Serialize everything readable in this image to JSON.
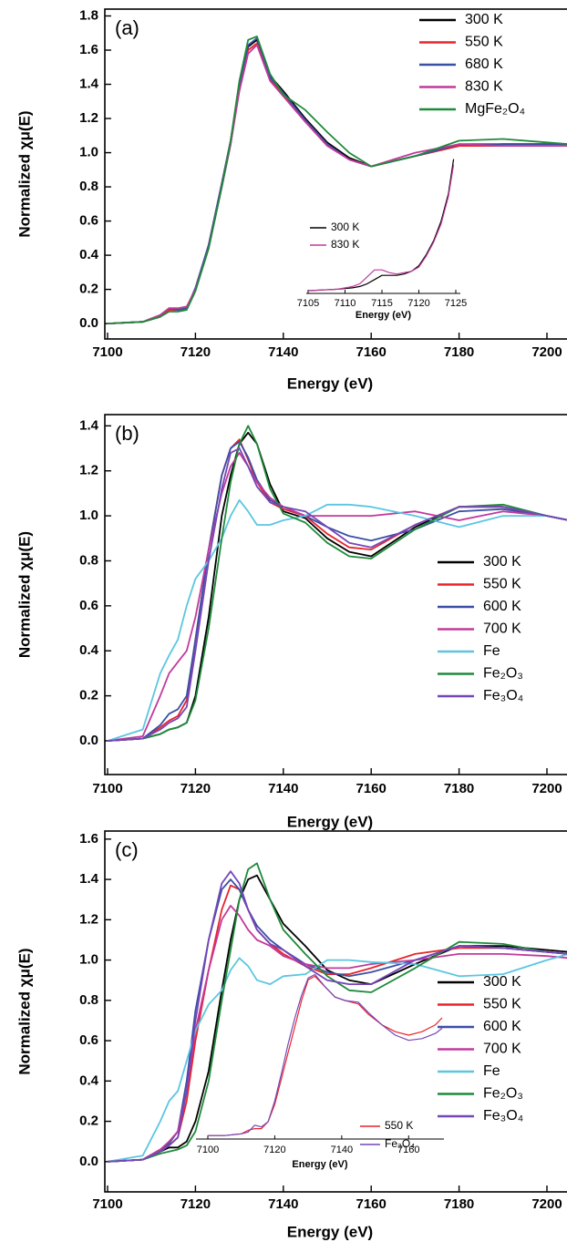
{
  "chart_data": [
    {
      "type": "line",
      "panel_label": "(a)",
      "xlabel": "Energy (eV)",
      "ylabel": "Normalized χμ(E)",
      "x": [
        7100,
        7108,
        7112,
        7114,
        7116,
        7118,
        7120,
        7123,
        7126,
        7128,
        7130,
        7132,
        7134,
        7137,
        7140,
        7145,
        7150,
        7155,
        7160,
        7170,
        7180,
        7190,
        7200,
        7205
      ],
      "xlim": [
        7100,
        7200
      ],
      "ylim": [
        -0.09,
        1.84
      ],
      "xticks": [
        7100,
        7120,
        7140,
        7160,
        7180,
        7200
      ],
      "yticks": [
        {
          "value": 0,
          "label": "0.0"
        },
        0.2,
        0.4,
        0.6,
        0.8,
        {
          "value": 1,
          "label": "1.0"
        },
        1.2,
        1.4,
        1.6,
        1.8
      ],
      "legend": "upper right",
      "series": [
        {
          "name": "300 K",
          "color": "#000000",
          "values": [
            0,
            0.01,
            0.04,
            0.08,
            0.08,
            0.09,
            0.2,
            0.45,
            0.8,
            1.05,
            1.38,
            1.62,
            1.66,
            1.45,
            1.36,
            1.2,
            1.06,
            0.97,
            0.92,
            0.98,
            1.04,
            1.05,
            1.05,
            1.05
          ]
        },
        {
          "name": "550 K",
          "color": "#e8242b",
          "values": [
            0,
            0.01,
            0.04,
            0.08,
            0.08,
            0.09,
            0.2,
            0.46,
            0.82,
            1.07,
            1.38,
            1.6,
            1.64,
            1.43,
            1.34,
            1.19,
            1.05,
            0.96,
            0.92,
            0.98,
            1.04,
            1.04,
            1.04,
            1.04
          ]
        },
        {
          "name": "680 K",
          "color": "#3a4fa6",
          "values": [
            0,
            0.01,
            0.05,
            0.09,
            0.08,
            0.09,
            0.21,
            0.46,
            0.82,
            1.07,
            1.4,
            1.63,
            1.67,
            1.44,
            1.35,
            1.19,
            1.05,
            0.96,
            0.92,
            0.98,
            1.05,
            1.05,
            1.05,
            1.05
          ]
        },
        {
          "name": "830 K",
          "color": "#c13a9c",
          "values": [
            0,
            0.01,
            0.05,
            0.09,
            0.09,
            0.1,
            0.2,
            0.44,
            0.8,
            1.05,
            1.36,
            1.58,
            1.63,
            1.42,
            1.33,
            1.18,
            1.04,
            0.96,
            0.92,
            1.0,
            1.05,
            1.04,
            1.04,
            1.04
          ]
        },
        {
          "name": "MgFe₂O₄",
          "color": "#1e8a3a",
          "values": [
            0,
            0.01,
            0.04,
            0.07,
            0.07,
            0.08,
            0.19,
            0.44,
            0.8,
            1.07,
            1.42,
            1.66,
            1.68,
            1.46,
            1.34,
            1.25,
            1.12,
            1.0,
            0.92,
            0.98,
            1.07,
            1.08,
            1.06,
            1.05
          ]
        }
      ]
    },
    {
      "type": "line",
      "xlabel": "Energy (eV)",
      "x": [
        7105,
        7107,
        7109,
        7111,
        7112,
        7113,
        7114,
        7115,
        7116,
        7117,
        7118,
        7119,
        7120,
        7121,
        7122,
        7123,
        7124,
        7124.7
      ],
      "xlim": [
        7105,
        7125
      ],
      "ylim": [
        0,
        1
      ],
      "xticks": [
        7105,
        7110,
        7115,
        7120,
        7125
      ],
      "series": [
        {
          "name": "300 K",
          "color": "#000000",
          "values": [
            0.02,
            0.025,
            0.03,
            0.04,
            0.05,
            0.07,
            0.1,
            0.13,
            0.13,
            0.13,
            0.14,
            0.16,
            0.2,
            0.28,
            0.38,
            0.52,
            0.72,
            0.97
          ]
        },
        {
          "name": "830 K",
          "color": "#c13a9c",
          "values": [
            0.02,
            0.025,
            0.03,
            0.05,
            0.07,
            0.12,
            0.17,
            0.17,
            0.15,
            0.14,
            0.15,
            0.16,
            0.19,
            0.27,
            0.37,
            0.5,
            0.7,
            0.93
          ]
        }
      ]
    },
    {
      "type": "line",
      "panel_label": "(b)",
      "xlabel": "Energy (eV)",
      "ylabel": "Normalized χμ(E)",
      "x": [
        7100,
        7108,
        7112,
        7114,
        7116,
        7118,
        7120,
        7123,
        7126,
        7128,
        7130,
        7132,
        7134,
        7137,
        7140,
        7145,
        7150,
        7155,
        7160,
        7170,
        7180,
        7190,
        7200,
        7205
      ],
      "xlim": [
        7100,
        7200
      ],
      "ylim": [
        -0.15,
        1.45
      ],
      "xticks": [
        7100,
        7120,
        7140,
        7160,
        7180,
        7200
      ],
      "yticks": [
        {
          "value": 0,
          "label": "0.0"
        },
        0.2,
        0.4,
        0.6,
        0.8,
        {
          "value": 1,
          "label": "1.0"
        },
        1.2,
        1.4
      ],
      "legend": "right",
      "series": [
        {
          "name": "300 K",
          "color": "#000000",
          "values": [
            0,
            0.01,
            0.03,
            0.05,
            0.06,
            0.08,
            0.2,
            0.55,
            1.0,
            1.18,
            1.32,
            1.37,
            1.32,
            1.14,
            1.02,
            0.99,
            0.9,
            0.84,
            0.82,
            0.95,
            1.04,
            1.04,
            1.0,
            0.98
          ]
        },
        {
          "name": "550 K",
          "color": "#e8242b",
          "values": [
            0,
            0.01,
            0.06,
            0.09,
            0.11,
            0.18,
            0.45,
            0.85,
            1.18,
            1.3,
            1.34,
            1.25,
            1.15,
            1.06,
            1.03,
            1.0,
            0.92,
            0.86,
            0.85,
            0.96,
            1.04,
            1.04,
            1.0,
            0.98
          ]
        },
        {
          "name": "600 K",
          "color": "#3a4fa6",
          "values": [
            0,
            0.01,
            0.07,
            0.12,
            0.14,
            0.2,
            0.45,
            0.85,
            1.18,
            1.3,
            1.33,
            1.26,
            1.16,
            1.07,
            1.04,
            1.0,
            0.95,
            0.91,
            0.89,
            0.94,
            1.02,
            1.03,
            1.0,
            0.98
          ]
        },
        {
          "name": "700 K",
          "color": "#c13a9c",
          "values": [
            0,
            0.02,
            0.2,
            0.3,
            0.35,
            0.4,
            0.55,
            0.85,
            1.1,
            1.22,
            1.28,
            1.22,
            1.15,
            1.08,
            1.04,
            1.0,
            1.0,
            1.0,
            1.0,
            1.02,
            0.98,
            1.02,
            1.0,
            0.98
          ]
        },
        {
          "name": "Fe",
          "color": "#5bc6e0",
          "values": [
            0,
            0.05,
            0.3,
            0.38,
            0.45,
            0.6,
            0.72,
            0.8,
            0.9,
            1.0,
            1.07,
            1.02,
            0.96,
            0.96,
            0.98,
            1.0,
            1.05,
            1.05,
            1.04,
            1.0,
            0.95,
            1.0,
            1.0,
            0.98
          ]
        },
        {
          "name": "Fe₂O₃",
          "color": "#1e8a3a",
          "values": [
            0,
            0.01,
            0.03,
            0.05,
            0.06,
            0.08,
            0.18,
            0.5,
            0.9,
            1.15,
            1.32,
            1.4,
            1.32,
            1.12,
            1.01,
            0.97,
            0.88,
            0.82,
            0.81,
            0.94,
            1.04,
            1.05,
            1.0,
            0.98
          ]
        },
        {
          "name": "Fe₃O₄",
          "color": "#7546b8",
          "values": [
            0,
            0.01,
            0.05,
            0.08,
            0.1,
            0.15,
            0.4,
            0.8,
            1.12,
            1.28,
            1.3,
            1.22,
            1.13,
            1.06,
            1.04,
            1.02,
            0.95,
            0.88,
            0.86,
            0.96,
            1.04,
            1.04,
            1.0,
            0.98
          ]
        }
      ]
    },
    {
      "type": "line",
      "panel_label": "(c)",
      "xlabel": "Energy (eV)",
      "ylabel": "Normalized χμ(E)",
      "x": [
        7100,
        7108,
        7112,
        7114,
        7116,
        7118,
        7120,
        7123,
        7126,
        7128,
        7130,
        7132,
        7134,
        7137,
        7140,
        7145,
        7150,
        7155,
        7160,
        7170,
        7180,
        7190,
        7200,
        7205
      ],
      "xlim": [
        7100,
        7200
      ],
      "ylim": [
        -0.15,
        1.64
      ],
      "xticks": [
        7100,
        7120,
        7140,
        7160,
        7180,
        7200
      ],
      "yticks": [
        {
          "value": 0,
          "label": "0.0"
        },
        0.2,
        0.4,
        0.6,
        0.8,
        {
          "value": 1,
          "label": "1.0"
        },
        1.2,
        1.4,
        1.6
      ],
      "legend": "lower right",
      "series": [
        {
          "name": "300 K",
          "color": "#000000",
          "values": [
            0,
            0.01,
            0.05,
            0.07,
            0.07,
            0.1,
            0.2,
            0.45,
            0.85,
            1.1,
            1.3,
            1.4,
            1.42,
            1.3,
            1.18,
            1.07,
            0.95,
            0.9,
            0.88,
            0.98,
            1.07,
            1.07,
            1.05,
            1.04
          ]
        },
        {
          "name": "550 K",
          "color": "#e8242b",
          "values": [
            0,
            0.01,
            0.06,
            0.08,
            0.12,
            0.3,
            0.6,
            0.95,
            1.25,
            1.37,
            1.35,
            1.25,
            1.15,
            1.08,
            1.03,
            0.97,
            0.93,
            0.93,
            0.96,
            1.03,
            1.06,
            1.06,
            1.04,
            1.03
          ]
        },
        {
          "name": "600 K",
          "color": "#3a4fa6",
          "values": [
            0,
            0.01,
            0.06,
            0.09,
            0.15,
            0.4,
            0.75,
            1.1,
            1.35,
            1.4,
            1.35,
            1.25,
            1.17,
            1.1,
            1.05,
            0.98,
            0.94,
            0.92,
            0.94,
            1.0,
            1.07,
            1.06,
            1.04,
            1.03
          ]
        },
        {
          "name": "700 K",
          "color": "#c13a9c",
          "values": [
            0,
            0.01,
            0.06,
            0.1,
            0.15,
            0.35,
            0.65,
            0.95,
            1.2,
            1.27,
            1.22,
            1.15,
            1.1,
            1.07,
            1.02,
            0.98,
            0.96,
            0.96,
            0.98,
            1.0,
            1.03,
            1.03,
            1.02,
            1.01
          ]
        },
        {
          "name": "Fe",
          "color": "#5bc6e0",
          "values": [
            0,
            0.03,
            0.2,
            0.3,
            0.35,
            0.5,
            0.65,
            0.78,
            0.85,
            0.95,
            1.01,
            0.97,
            0.9,
            0.88,
            0.92,
            0.93,
            1.0,
            1.0,
            0.99,
            0.98,
            0.92,
            0.93,
            1.0,
            1.03
          ]
        },
        {
          "name": "Fe₂O₃",
          "color": "#1e8a3a",
          "values": [
            0,
            0.01,
            0.04,
            0.05,
            0.06,
            0.08,
            0.15,
            0.4,
            0.8,
            1.05,
            1.3,
            1.45,
            1.48,
            1.3,
            1.15,
            1.03,
            0.92,
            0.85,
            0.84,
            0.96,
            1.09,
            1.08,
            1.04,
            1.03
          ]
        },
        {
          "name": "Fe₃O₄",
          "color": "#7546b8",
          "values": [
            0,
            0.01,
            0.05,
            0.08,
            0.12,
            0.35,
            0.7,
            1.1,
            1.38,
            1.44,
            1.38,
            1.25,
            1.15,
            1.08,
            1.05,
            0.97,
            0.9,
            0.88,
            0.88,
            1.0,
            1.07,
            1.06,
            1.04,
            1.03
          ]
        }
      ]
    },
    {
      "type": "line",
      "xlabel": "Energy (eV)",
      "x": [
        7100,
        7105,
        7110,
        7112,
        7114,
        7116,
        7118,
        7120,
        7122,
        7124,
        7126,
        7128,
        7130,
        7132,
        7135,
        7138,
        7141,
        7145,
        7148,
        7152,
        7156,
        7160,
        7164,
        7168,
        7170
      ],
      "xlim": [
        7100,
        7170
      ],
      "ylim": [
        0,
        1
      ],
      "xticks": [
        7100,
        7120,
        7140,
        7160
      ],
      "series": [
        {
          "name": "550 K",
          "color": "#e8242b",
          "values": [
            0.02,
            0.02,
            0.03,
            0.05,
            0.06,
            0.06,
            0.1,
            0.2,
            0.35,
            0.5,
            0.65,
            0.8,
            0.92,
            0.94,
            0.88,
            0.82,
            0.8,
            0.78,
            0.72,
            0.66,
            0.62,
            0.6,
            0.62,
            0.66,
            0.7
          ]
        },
        {
          "name": "Fe₃O₄",
          "color": "#7546b8",
          "values": [
            0.02,
            0.02,
            0.03,
            0.04,
            0.08,
            0.07,
            0.1,
            0.22,
            0.38,
            0.55,
            0.7,
            0.83,
            0.93,
            0.95,
            0.88,
            0.82,
            0.8,
            0.79,
            0.73,
            0.66,
            0.6,
            0.57,
            0.58,
            0.61,
            0.64
          ]
        }
      ]
    }
  ]
}
